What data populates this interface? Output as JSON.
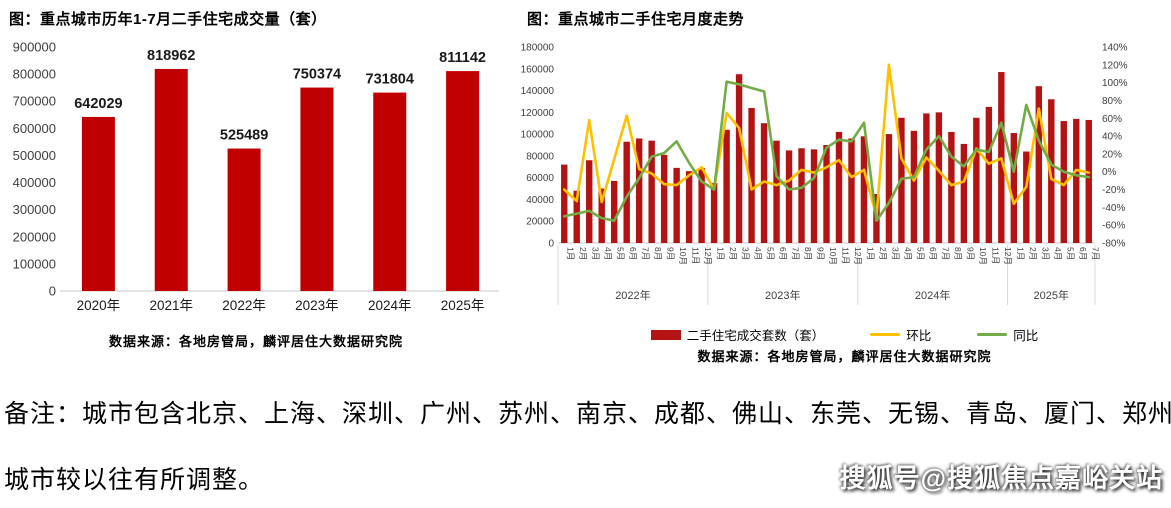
{
  "note": {
    "line1": "备注：城市包含北京、上海、深圳、广州、苏州、南京、成都、佛山、东莞、无锡、青岛、厦门、郑州，",
    "line2": "城市较以往有所调整。"
  },
  "watermark": "搜狐号@搜狐焦点嘉峪关站",
  "colors": {
    "left_bar": "#c00000",
    "right_bar": "#b31312",
    "huanbi_line": "#ffc000",
    "tongbi_line": "#70ad47",
    "axis_text": "#404040",
    "axis_line": "#c9c9c9"
  },
  "chart_data": [
    {
      "type": "bar",
      "title": "图：重点城市历年1-7月二手住宅成交量（套）",
      "categories": [
        "2020年",
        "2021年",
        "2022年",
        "2023年",
        "2024年",
        "2025年"
      ],
      "values": [
        642029,
        818962,
        525489,
        750374,
        731804,
        811142
      ],
      "ylim": [
        0,
        900000
      ],
      "yticks": [
        0,
        100000,
        200000,
        300000,
        400000,
        500000,
        600000,
        700000,
        800000,
        900000
      ],
      "bar_color": "#c00000",
      "grid": false,
      "source": "数据来源：各地房管局，麟评居住大数据研究院"
    },
    {
      "type": "bar+line combo, dual axis",
      "title": "图：重点城市二手住宅月度走势",
      "month_labels": [
        "1月",
        "2月",
        "3月",
        "4月",
        "5月",
        "6月",
        "7月",
        "8月",
        "9月",
        "10月",
        "11月",
        "12月",
        "1月",
        "2月",
        "3月",
        "4月",
        "5月",
        "6月",
        "7月",
        "8月",
        "9月",
        "10月",
        "11月",
        "12月",
        "1月",
        "2月",
        "3月",
        "4月",
        "5月",
        "6月",
        "7月",
        "8月",
        "9月",
        "10月",
        "11月",
        "12月",
        "1月",
        "2月",
        "3月",
        "4月",
        "5月",
        "6月",
        "7月"
      ],
      "year_groups": [
        {
          "label": "2022年",
          "months": 12
        },
        {
          "label": "2023年",
          "months": 12
        },
        {
          "label": "2024年",
          "months": 12
        },
        {
          "label": "2025年",
          "months": 7
        }
      ],
      "left_ylim": [
        0,
        180000
      ],
      "left_yticks": [
        0,
        20000,
        40000,
        60000,
        80000,
        100000,
        120000,
        140000,
        160000,
        180000
      ],
      "right_ytick_labels": [
        "140%",
        "120%",
        "100%",
        "80%",
        "60%",
        "40%",
        "20%",
        "0%",
        "-20%",
        "-40%",
        "-60%",
        "-80%"
      ],
      "right_ylim": [
        -80,
        140
      ],
      "grid": false,
      "legend_position": "bottom",
      "series": [
        {
          "name": "二手住宅成交套数（套）",
          "type": "bar",
          "axis": "left",
          "color": "#b31312",
          "values": [
            72000,
            48000,
            76000,
            50000,
            57000,
            93000,
            96000,
            94000,
            81000,
            69000,
            66000,
            69000,
            55000,
            104000,
            155000,
            124000,
            110000,
            94000,
            85000,
            87000,
            86000,
            90000,
            102000,
            96000,
            98000,
            45000,
            100000,
            115000,
            103000,
            119000,
            120000,
            102000,
            91000,
            115000,
            125000,
            157000,
            101000,
            84000,
            144000,
            132000,
            112000,
            114000,
            113000
          ]
        },
        {
          "name": "环比",
          "type": "line",
          "axis": "right",
          "unit": "%",
          "color": "#ffc000",
          "values": [
            -20,
            -33,
            58,
            -34,
            14,
            63,
            3,
            -2,
            -14,
            -15,
            -4,
            5,
            -20,
            66,
            49,
            -20,
            -11,
            -15,
            -10,
            2,
            -1,
            5,
            13,
            -6,
            2,
            -50,
            120,
            15,
            -10,
            16,
            1,
            -15,
            -11,
            26,
            9,
            15,
            -36,
            -17,
            71,
            -8,
            -15,
            2,
            -1
          ]
        },
        {
          "name": "同比",
          "type": "line",
          "axis": "right",
          "unit": "%",
          "color": "#70ad47",
          "values": [
            -50,
            -47,
            -44,
            -52,
            -55,
            -28,
            -7,
            17,
            21,
            34,
            10,
            -11,
            -20,
            101,
            98,
            94,
            90,
            -5,
            -20,
            -18,
            -7,
            27,
            36,
            34,
            55,
            -55,
            -35,
            -8,
            -6,
            25,
            40,
            17,
            6,
            25,
            22,
            55,
            0,
            75,
            35,
            8,
            0,
            -4,
            -6
          ]
        }
      ],
      "source": "数据来源：各地房管局，麟评居住大数据研究院"
    }
  ]
}
